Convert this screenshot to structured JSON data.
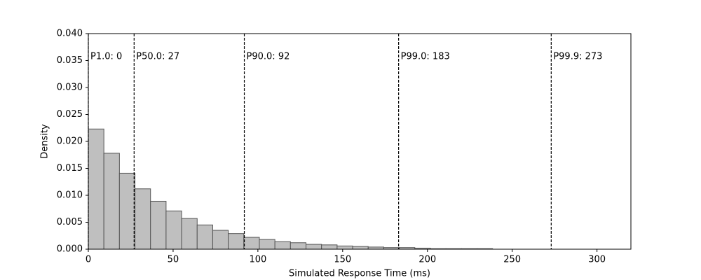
{
  "chart_data": {
    "type": "histogram",
    "xlabel": "Simulated Response Time (ms)",
    "ylabel": "Density",
    "bins": [
      0,
      9.17,
      18.34,
      27.51,
      36.68,
      45.85,
      55.02,
      64.19,
      73.36,
      82.53,
      91.7,
      100.87,
      110.04,
      119.21,
      128.38,
      137.55,
      146.72,
      155.89,
      165.06,
      174.23,
      183.4,
      192.57,
      201.74,
      210.91,
      220.08,
      229.25,
      238.42,
      247.59,
      256.76,
      265.93,
      275.1
    ],
    "counts": [
      0.0223,
      0.0178,
      0.0141,
      0.0112,
      0.0089,
      0.0071,
      0.0057,
      0.0045,
      0.0035,
      0.0029,
      0.0022,
      0.0018,
      0.0014,
      0.0012,
      0.0009,
      0.0008,
      0.0006,
      0.0005,
      0.0004,
      0.0003,
      0.0003,
      0.0002,
      0.0001,
      0.0001,
      0.0001,
      0.0001,
      0,
      0,
      0,
      0
    ],
    "color": "#bfbfbf",
    "edgecolor": "#555555",
    "percentiles": [
      {
        "x": 0,
        "label": "P1.0: 0"
      },
      {
        "x": 27,
        "label": "P50.0: 27"
      },
      {
        "x": 92,
        "label": "P90.0: 92"
      },
      {
        "x": 183,
        "label": "P99.0: 183"
      },
      {
        "x": 273,
        "label": "P99.9: 273"
      }
    ],
    "xlim": [
      0,
      320
    ],
    "xticks": [
      0,
      50,
      100,
      150,
      200,
      250,
      300
    ],
    "ylim": [
      0,
      0.04
    ],
    "yticks": [
      {
        "value": 0,
        "label": "0.000"
      },
      {
        "value": 0.005,
        "label": "0.005"
      },
      {
        "value": 0.01,
        "label": "0.010"
      },
      {
        "value": 0.015,
        "label": "0.015"
      },
      {
        "value": 0.02,
        "label": "0.020"
      },
      {
        "value": 0.025,
        "label": "0.025"
      },
      {
        "value": 0.03,
        "label": "0.030"
      },
      {
        "value": 0.035,
        "label": "0.035"
      },
      {
        "value": 0.04,
        "label": "0.040"
      }
    ]
  }
}
